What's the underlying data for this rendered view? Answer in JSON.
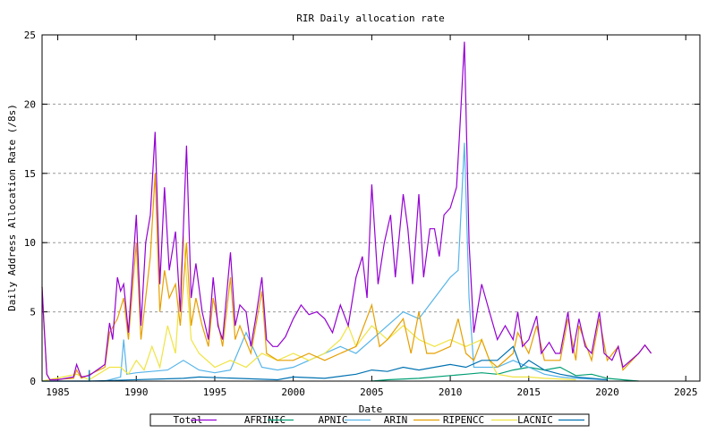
{
  "chart_data": {
    "type": "line",
    "title": "RIR Daily allocation rate",
    "xlabel": "Date",
    "ylabel": "Daily Address Allocation Rate (/8s)",
    "xlim": [
      1984,
      2025.9
    ],
    "ylim": [
      0,
      25
    ],
    "xticks": [
      1985,
      1990,
      1995,
      2000,
      2005,
      2010,
      2015,
      2020,
      2025
    ],
    "yticks": [
      0,
      5,
      10,
      15,
      20,
      25
    ],
    "grid": "y-dashed",
    "legend": "bottom",
    "series": [
      {
        "name": "Total",
        "color": "#9400d3",
        "points": [
          [
            1984,
            6.8
          ],
          [
            1984.1,
            4.5
          ],
          [
            1984.3,
            0.5
          ],
          [
            1984.5,
            0.1
          ],
          [
            1985,
            0.1
          ],
          [
            1986,
            0.3
          ],
          [
            1986.2,
            1.2
          ],
          [
            1986.5,
            0.3
          ],
          [
            1987,
            0.4
          ],
          [
            1987.5,
            0.8
          ],
          [
            1988,
            1.2
          ],
          [
            1988.3,
            4.2
          ],
          [
            1988.5,
            3
          ],
          [
            1988.8,
            7.5
          ],
          [
            1989,
            6.5
          ],
          [
            1989.2,
            7
          ],
          [
            1989.5,
            3.5
          ],
          [
            1990,
            12
          ],
          [
            1990.3,
            4
          ],
          [
            1990.6,
            10
          ],
          [
            1990.9,
            12
          ],
          [
            1991.2,
            18
          ],
          [
            1991.5,
            7
          ],
          [
            1991.8,
            14
          ],
          [
            1992.1,
            8
          ],
          [
            1992.5,
            10.8
          ],
          [
            1992.8,
            5
          ],
          [
            1993.2,
            17
          ],
          [
            1993.5,
            6
          ],
          [
            1993.8,
            8.5
          ],
          [
            1994.2,
            5
          ],
          [
            1994.6,
            3
          ],
          [
            1994.9,
            7.5
          ],
          [
            1995.2,
            4
          ],
          [
            1995.5,
            3
          ],
          [
            1996,
            9.3
          ],
          [
            1996.3,
            4
          ],
          [
            1996.6,
            5.5
          ],
          [
            1997,
            5
          ],
          [
            1997.3,
            2.5
          ],
          [
            1997.6,
            4.5
          ],
          [
            1998,
            7.5
          ],
          [
            1998.3,
            3
          ],
          [
            1998.7,
            2.5
          ],
          [
            1999,
            2.5
          ],
          [
            1999.5,
            3.2
          ],
          [
            2000,
            4.5
          ],
          [
            2000.5,
            5.5
          ],
          [
            2001,
            4.8
          ],
          [
            2001.5,
            5
          ],
          [
            2002,
            4.5
          ],
          [
            2002.5,
            3.5
          ],
          [
            2003,
            5.5
          ],
          [
            2003.5,
            4
          ],
          [
            2004,
            7.5
          ],
          [
            2004.4,
            9
          ],
          [
            2004.7,
            6
          ],
          [
            2005,
            14.2
          ],
          [
            2005.4,
            7
          ],
          [
            2005.8,
            10
          ],
          [
            2006.2,
            12
          ],
          [
            2006.5,
            7.5
          ],
          [
            2007,
            13.5
          ],
          [
            2007.3,
            11
          ],
          [
            2007.6,
            7
          ],
          [
            2008,
            13.5
          ],
          [
            2008.3,
            7.5
          ],
          [
            2008.7,
            11
          ],
          [
            2009,
            11
          ],
          [
            2009.3,
            9
          ],
          [
            2009.6,
            12
          ],
          [
            2010,
            12.5
          ],
          [
            2010.4,
            14
          ],
          [
            2010.6,
            18
          ],
          [
            2010.9,
            24.5
          ],
          [
            2011.2,
            10
          ],
          [
            2011.5,
            3.5
          ],
          [
            2012,
            7
          ],
          [
            2012.5,
            5
          ],
          [
            2013,
            3
          ],
          [
            2013.5,
            4
          ],
          [
            2014,
            3
          ],
          [
            2014.3,
            5
          ],
          [
            2014.6,
            2.5
          ],
          [
            2015,
            3
          ],
          [
            2015.5,
            4.7
          ],
          [
            2015.8,
            2
          ],
          [
            2016.3,
            2.8
          ],
          [
            2016.7,
            2
          ],
          [
            2017,
            2
          ],
          [
            2017.5,
            5
          ],
          [
            2017.8,
            2
          ],
          [
            2018.2,
            4.5
          ],
          [
            2018.6,
            2.5
          ],
          [
            2019,
            2
          ],
          [
            2019.5,
            5
          ],
          [
            2019.8,
            2
          ],
          [
            2020.3,
            1.5
          ],
          [
            2020.7,
            2.5
          ],
          [
            2021,
            1
          ],
          [
            2021.5,
            1.5
          ],
          [
            2022,
            2
          ],
          [
            2022.4,
            2.6
          ],
          [
            2022.8,
            2
          ]
        ]
      },
      {
        "name": "AFRINIC",
        "color": "#009e73",
        "points": [
          [
            2005,
            0
          ],
          [
            2006,
            0.1
          ],
          [
            2008,
            0.2
          ],
          [
            2010,
            0.4
          ],
          [
            2011,
            0.5
          ],
          [
            2012,
            0.6
          ],
          [
            2013,
            0.5
          ],
          [
            2014,
            0.8
          ],
          [
            2015,
            1
          ],
          [
            2016,
            0.8
          ],
          [
            2017,
            1
          ],
          [
            2018,
            0.4
          ],
          [
            2019,
            0.5
          ],
          [
            2020,
            0.2
          ],
          [
            2021,
            0.1
          ],
          [
            2022,
            0
          ]
        ]
      },
      {
        "name": "APNIC",
        "color": "#56b4e9",
        "points": [
          [
            1984,
            0
          ],
          [
            1988,
            0
          ],
          [
            1989,
            0.3
          ],
          [
            1989.2,
            3
          ],
          [
            1989.4,
            0.5
          ],
          [
            1990,
            0.6
          ],
          [
            1992,
            0.8
          ],
          [
            1993,
            1.5
          ],
          [
            1994,
            0.8
          ],
          [
            1995,
            0.6
          ],
          [
            1996,
            0.8
          ],
          [
            1997,
            3.5
          ],
          [
            1998,
            1
          ],
          [
            1999,
            0.8
          ],
          [
            2000,
            1
          ],
          [
            2001,
            1.5
          ],
          [
            2002,
            2
          ],
          [
            2003,
            2.5
          ],
          [
            2004,
            2
          ],
          [
            2005,
            3
          ],
          [
            2006,
            4
          ],
          [
            2007,
            5
          ],
          [
            2008,
            4.5
          ],
          [
            2009,
            6
          ],
          [
            2010,
            7.5
          ],
          [
            2010.5,
            8
          ],
          [
            2010.9,
            17.2
          ],
          [
            2011.2,
            6
          ],
          [
            2011.5,
            1
          ],
          [
            2012,
            1
          ],
          [
            2013,
            1
          ],
          [
            2014,
            1.5
          ],
          [
            2015,
            1
          ],
          [
            2016,
            0.5
          ],
          [
            2017,
            0.3
          ],
          [
            2018,
            0.2
          ],
          [
            2020,
            0.1
          ]
        ]
      },
      {
        "name": "ARIN",
        "color": "#e69f00",
        "points": [
          [
            1984,
            6.8
          ],
          [
            1984.1,
            4.5
          ],
          [
            1984.3,
            0.5
          ],
          [
            1984.5,
            0.1
          ],
          [
            1986,
            0.2
          ],
          [
            1986.2,
            0.8
          ],
          [
            1986.5,
            0.2
          ],
          [
            1988,
            1
          ],
          [
            1988.3,
            3.5
          ],
          [
            1988.8,
            4.5
          ],
          [
            1989.2,
            6
          ],
          [
            1989.5,
            3
          ],
          [
            1990,
            10
          ],
          [
            1990.3,
            3
          ],
          [
            1990.9,
            9
          ],
          [
            1991.2,
            15
          ],
          [
            1991.5,
            5
          ],
          [
            1991.8,
            8
          ],
          [
            1992.1,
            6
          ],
          [
            1992.5,
            7
          ],
          [
            1992.8,
            4
          ],
          [
            1993.2,
            10
          ],
          [
            1993.5,
            4
          ],
          [
            1993.8,
            6
          ],
          [
            1994.2,
            4
          ],
          [
            1994.6,
            2.5
          ],
          [
            1994.9,
            6
          ],
          [
            1995.5,
            2.5
          ],
          [
            1996,
            7.5
          ],
          [
            1996.3,
            3
          ],
          [
            1996.6,
            4
          ],
          [
            1997.3,
            2
          ],
          [
            1998,
            6.5
          ],
          [
            1998.3,
            2
          ],
          [
            1999,
            1.5
          ],
          [
            2000,
            1.5
          ],
          [
            2001,
            2
          ],
          [
            2002,
            1.5
          ],
          [
            2003,
            2
          ],
          [
            2004,
            2.5
          ],
          [
            2005,
            5.5
          ],
          [
            2005.5,
            2.5
          ],
          [
            2006,
            3
          ],
          [
            2007,
            4.5
          ],
          [
            2007.5,
            2
          ],
          [
            2008,
            5
          ],
          [
            2008.5,
            2
          ],
          [
            2009,
            2
          ],
          [
            2010,
            2.5
          ],
          [
            2010.5,
            4.5
          ],
          [
            2011,
            2
          ],
          [
            2011.5,
            1.5
          ],
          [
            2012,
            3
          ],
          [
            2012.5,
            1.5
          ],
          [
            2013,
            1
          ],
          [
            2014,
            2
          ],
          [
            2014.3,
            3.5
          ],
          [
            2015,
            2
          ],
          [
            2015.5,
            4
          ],
          [
            2016,
            1.5
          ],
          [
            2017,
            1.5
          ],
          [
            2017.5,
            4.5
          ],
          [
            2018,
            1.5
          ],
          [
            2018.2,
            4
          ],
          [
            2019,
            1.5
          ],
          [
            2019.5,
            4.5
          ],
          [
            2020,
            1.5
          ],
          [
            2020.7,
            2.5
          ],
          [
            2021,
            0.8
          ],
          [
            2022,
            2
          ],
          [
            2022.4,
            2.6
          ],
          [
            2022.8,
            2
          ]
        ]
      },
      {
        "name": "RIPENCC",
        "color": "#f0e442",
        "points": [
          [
            1984,
            0
          ],
          [
            1986.2,
            0.5
          ],
          [
            1987,
            0.1
          ],
          [
            1988.3,
            1
          ],
          [
            1989,
            1
          ],
          [
            1989.5,
            0.5
          ],
          [
            1990,
            1.5
          ],
          [
            1990.5,
            0.8
          ],
          [
            1991,
            2.5
          ],
          [
            1991.5,
            1
          ],
          [
            1992,
            4
          ],
          [
            1992.5,
            2
          ],
          [
            1993,
            10.5
          ],
          [
            1993.5,
            3
          ],
          [
            1994,
            2
          ],
          [
            1995,
            1
          ],
          [
            1996,
            1.5
          ],
          [
            1997,
            1
          ],
          [
            1998,
            2
          ],
          [
            1999,
            1.5
          ],
          [
            2000,
            2
          ],
          [
            2001,
            1.5
          ],
          [
            2002,
            2
          ],
          [
            2003,
            3
          ],
          [
            2003.5,
            4
          ],
          [
            2004,
            2.5
          ],
          [
            2005,
            4
          ],
          [
            2006,
            3
          ],
          [
            2007,
            4
          ],
          [
            2008,
            3
          ],
          [
            2009,
            2.5
          ],
          [
            2010,
            3
          ],
          [
            2011,
            2.5
          ],
          [
            2012,
            3
          ],
          [
            2012.5,
            1.5
          ],
          [
            2013,
            0.5
          ],
          [
            2014,
            0.3
          ],
          [
            2015,
            0.3
          ],
          [
            2016,
            0.2
          ],
          [
            2018,
            0.1
          ]
        ]
      },
      {
        "name": "LACNIC",
        "color": "#0072b2",
        "points": [
          [
            1984,
            0
          ],
          [
            1987,
            0
          ],
          [
            1987.01,
            0.8
          ],
          [
            1987.02,
            0
          ],
          [
            1993,
            0.2
          ],
          [
            1994,
            0.3
          ],
          [
            1999,
            0.1
          ],
          [
            2000,
            0.3
          ],
          [
            2002,
            0.2
          ],
          [
            2004,
            0.5
          ],
          [
            2005,
            0.8
          ],
          [
            2006,
            0.7
          ],
          [
            2007,
            1
          ],
          [
            2008,
            0.8
          ],
          [
            2009,
            1
          ],
          [
            2010,
            1.2
          ],
          [
            2011,
            1
          ],
          [
            2012,
            1.5
          ],
          [
            2013,
            1.5
          ],
          [
            2014,
            2.5
          ],
          [
            2014.5,
            1
          ],
          [
            2015,
            1.5
          ],
          [
            2016,
            0.8
          ],
          [
            2017,
            0.5
          ],
          [
            2018,
            0.3
          ],
          [
            2020,
            0.1
          ]
        ]
      }
    ]
  }
}
